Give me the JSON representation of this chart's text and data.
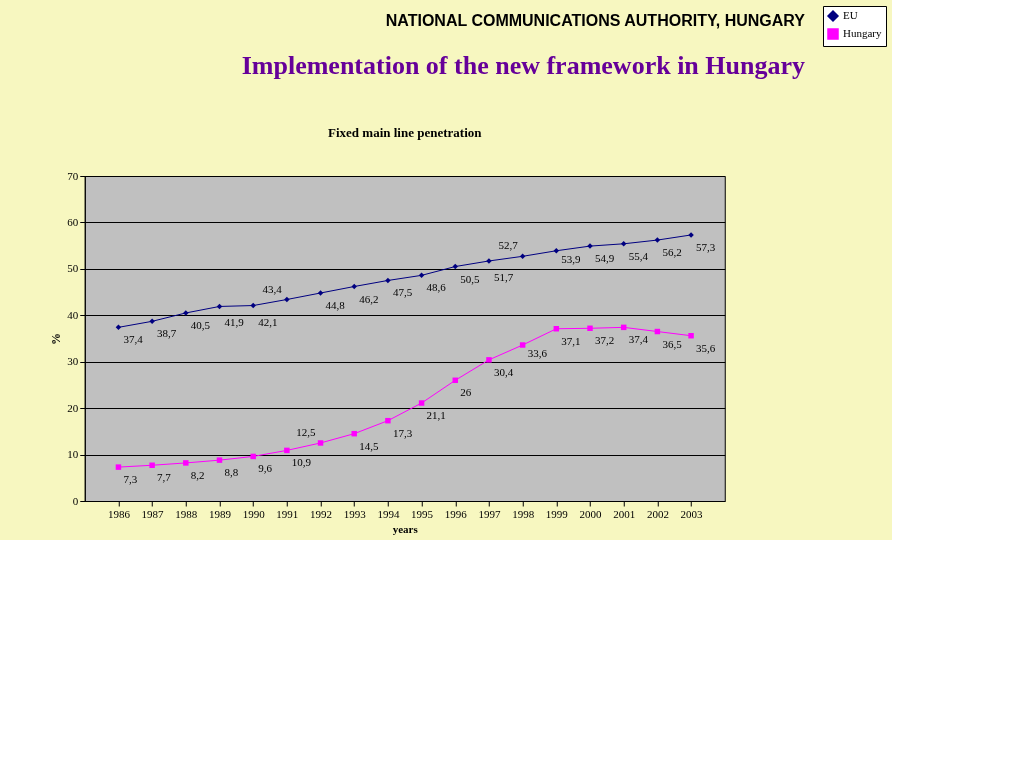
{
  "chart_data": {
    "type": "line",
    "title": "Fixed main line penetration",
    "subtitle": "Implementation of the new framework in Hungary",
    "annotations": [
      "NATIONAL COMMUNICATIONS  AUTHORITY, HUNGARY"
    ],
    "xlabel": "years",
    "ylabel": "%",
    "categories": [
      "1986",
      "1987",
      "1988",
      "1989",
      "1990",
      "1991",
      "1992",
      "1993",
      "1994",
      "1995",
      "1996",
      "1997",
      "1998",
      "1999",
      "2000",
      "2001",
      "2002",
      "2003"
    ],
    "series": [
      {
        "name": "EU",
        "color": "#000080",
        "marker": "diamond",
        "values": [
          37.4,
          38.7,
          40.5,
          41.9,
          42.1,
          43.4,
          44.8,
          46.2,
          47.5,
          48.6,
          50.5,
          51.7,
          52.7,
          53.9,
          54.9,
          55.4,
          56.2,
          57.3
        ],
        "value_labels": [
          "37,4",
          "38,7",
          "40,5",
          "41,9",
          "42,1",
          "43,4",
          "44,8",
          "46,2",
          "47,5",
          "48,6",
          "50,5",
          "51,7",
          "52,7",
          "53,9",
          "54,9",
          "55,4",
          "56,2",
          "57,3"
        ]
      },
      {
        "name": "Hungary",
        "color": "#ff00ff",
        "marker": "square",
        "values": [
          7.3,
          7.7,
          8.2,
          8.8,
          9.6,
          10.9,
          12.5,
          14.5,
          17.3,
          21.1,
          26,
          30.4,
          33.6,
          37.1,
          37.2,
          37.4,
          36.5,
          35.6
        ],
        "value_labels": [
          "7,3",
          "7,7",
          "8,2",
          "8,8",
          "9,6",
          "10,9",
          "12,5",
          "14,5",
          "17,3",
          "21,1",
          "26",
          "30,4",
          "33,6",
          "37,1",
          "37,2",
          "37,4",
          "36,5",
          "35,6"
        ]
      }
    ],
    "ylim": [
      0,
      70
    ],
    "yticks": [
      0,
      10,
      20,
      30,
      40,
      50,
      60,
      70
    ],
    "grid": "y",
    "legend": "right"
  }
}
